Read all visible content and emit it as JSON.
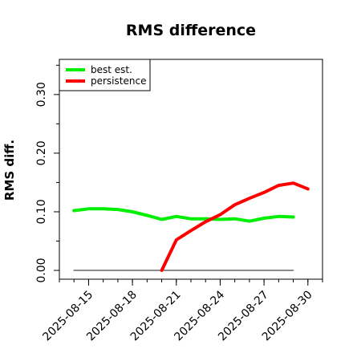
{
  "chart_data": {
    "type": "line",
    "title": "RMS difference",
    "xlabel": "",
    "ylabel": "RMS diff.",
    "x_ticks": [
      "2025-08-15",
      "2025-08-18",
      "2025-08-21",
      "2025-08-24",
      "2025-08-27",
      "2025-08-30"
    ],
    "y_ticks": [
      "0.00",
      "0.10",
      "0.20",
      "0.30"
    ],
    "y_minor_ticks": [
      0.05,
      0.15,
      0.25,
      0.35
    ],
    "xlim": [
      "2025-08-13",
      "2025-08-31"
    ],
    "ylim": [
      -0.015,
      0.36
    ],
    "grid": false,
    "legend_position": "top-left",
    "series": [
      {
        "name": "best est.",
        "color": "#00ee00",
        "x": [
          "2025-08-14",
          "2025-08-15",
          "2025-08-16",
          "2025-08-17",
          "2025-08-18",
          "2025-08-19",
          "2025-08-20",
          "2025-08-21",
          "2025-08-22",
          "2025-08-23",
          "2025-08-24",
          "2025-08-25",
          "2025-08-26",
          "2025-08-27",
          "2025-08-28",
          "2025-08-29"
        ],
        "values": [
          0.102,
          0.105,
          0.105,
          0.104,
          0.1,
          0.094,
          0.087,
          0.092,
          0.088,
          0.088,
          0.087,
          0.088,
          0.084,
          0.089,
          0.092,
          0.091
        ]
      },
      {
        "name": "persistence",
        "color": "#ff0000",
        "x": [
          "2025-08-20",
          "2025-08-21",
          "2025-08-22",
          "2025-08-23",
          "2025-08-24",
          "2025-08-25",
          "2025-08-26",
          "2025-08-27",
          "2025-08-28",
          "2025-08-29",
          "2025-08-30"
        ],
        "values": [
          0.0,
          0.052,
          0.068,
          0.083,
          0.095,
          0.112,
          0.123,
          0.133,
          0.145,
          0.149,
          0.139
        ]
      },
      {
        "name": "",
        "color": "#666666",
        "x": [
          "2025-08-14",
          "2025-08-29"
        ],
        "values": [
          0.0,
          0.0
        ]
      }
    ]
  }
}
